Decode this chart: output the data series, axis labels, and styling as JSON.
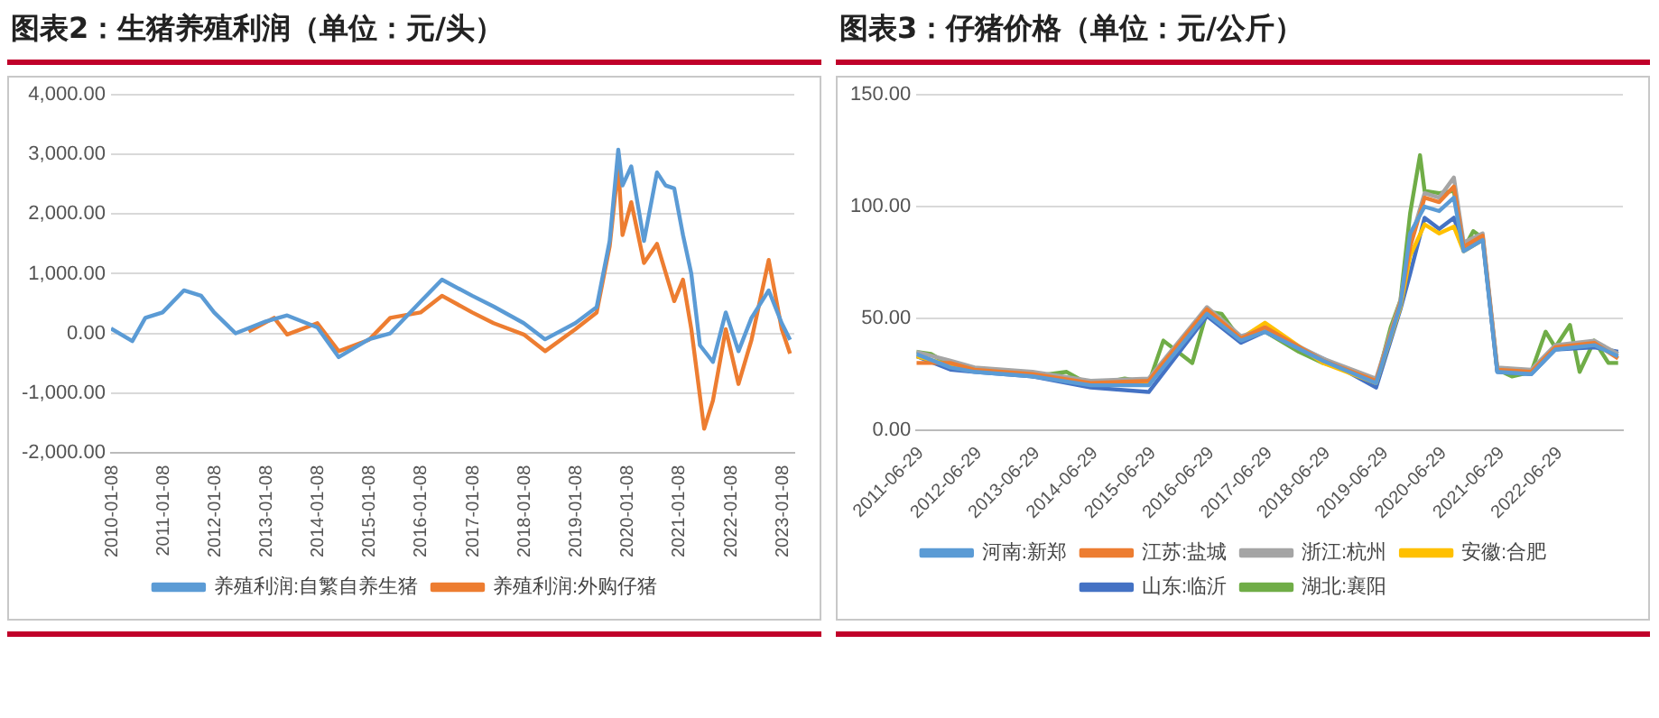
{
  "chart_data": [
    {
      "type": "line",
      "title": "图表2：生猪养殖利润（单位：元/头）",
      "ylim": [
        -2000,
        4000
      ],
      "yticks": [
        {
          "value": -2000,
          "label": "-2,000.00"
        },
        {
          "value": -1000,
          "label": "-1,000.00"
        },
        {
          "value": 0,
          "label": "0.00"
        },
        {
          "value": 1000,
          "label": "1,000.00"
        },
        {
          "value": 2000,
          "label": "2,000.00"
        },
        {
          "value": 3000,
          "label": "3,000.00"
        },
        {
          "value": 4000,
          "label": "4,000.00"
        }
      ],
      "xlim": [
        "2010-01-01",
        "2023-03-31"
      ],
      "xticks": [
        "2010-01-08",
        "2011-01-08",
        "2012-01-08",
        "2013-01-08",
        "2014-01-08",
        "2015-01-08",
        "2016-01-08",
        "2017-01-08",
        "2018-01-08",
        "2019-01-08",
        "2020-01-08",
        "2021-01-08",
        "2022-01-08",
        "2023-01-08"
      ],
      "grid": "y",
      "legend": "bottom",
      "marker": "none",
      "line_style": "solid",
      "series": [
        {
          "name": "养殖利润:自繁自养生猪",
          "color": "#5b9bd5",
          "x": [
            "2010-01",
            "2010-06",
            "2010-09",
            "2011-01",
            "2011-06",
            "2011-10",
            "2012-01",
            "2012-06",
            "2013-01",
            "2013-06",
            "2014-01",
            "2014-06",
            "2015-01",
            "2015-06",
            "2016-01",
            "2016-06",
            "2017-01",
            "2017-06",
            "2018-01",
            "2018-06",
            "2019-01",
            "2019-06",
            "2019-09",
            "2019-11",
            "2019-12",
            "2020-02",
            "2020-05",
            "2020-08",
            "2020-10",
            "2020-12",
            "2021-02",
            "2021-04",
            "2021-06",
            "2021-09",
            "2021-12",
            "2022-03",
            "2022-06",
            "2022-10",
            "2023-01",
            "2023-03"
          ],
          "values": [
            80,
            -130,
            260,
            350,
            720,
            630,
            350,
            0,
            200,
            300,
            100,
            -400,
            -100,
            0,
            530,
            900,
            630,
            450,
            170,
            -100,
            170,
            440,
            1550,
            3080,
            2480,
            2800,
            1550,
            2700,
            2480,
            2430,
            1650,
            1000,
            -200,
            -480,
            350,
            -300,
            260,
            720,
            170,
            -110
          ]
        },
        {
          "name": "养殖利润:外购仔猪",
          "color": "#ed7d31",
          "x": [
            "2012-09",
            "2013-03",
            "2013-06",
            "2014-01",
            "2014-06",
            "2015-01",
            "2015-06",
            "2016-01",
            "2016-06",
            "2017-01",
            "2017-06",
            "2018-01",
            "2018-06",
            "2019-01",
            "2019-06",
            "2019-09",
            "2019-11",
            "2019-12",
            "2020-02",
            "2020-05",
            "2020-08",
            "2020-12",
            "2021-02",
            "2021-04",
            "2021-07",
            "2021-09",
            "2021-12",
            "2022-03",
            "2022-06",
            "2022-10",
            "2023-01",
            "2023-03"
          ],
          "values": [
            30,
            260,
            -20,
            170,
            -300,
            -110,
            260,
            350,
            630,
            350,
            170,
            -20,
            -300,
            70,
            350,
            1460,
            2800,
            1650,
            2200,
            1180,
            1500,
            540,
            900,
            70,
            -1600,
            -1130,
            70,
            -850,
            -110,
            1230,
            70,
            -340
          ]
        }
      ]
    },
    {
      "type": "line",
      "title": "图表3：仔猪价格（单位：元/公斤）",
      "ylim": [
        0,
        150
      ],
      "yticks": [
        {
          "value": 0,
          "label": "0.00"
        },
        {
          "value": 50,
          "label": "50.00"
        },
        {
          "value": 100,
          "label": "100.00"
        },
        {
          "value": 150,
          "label": "150.00"
        }
      ],
      "xlim": [
        "2011-06-01",
        "2023-07-31"
      ],
      "xticks": [
        "2011-06-29",
        "2012-06-29",
        "2013-06-29",
        "2014-06-29",
        "2015-06-29",
        "2016-06-29",
        "2017-06-29",
        "2018-06-29",
        "2019-06-29",
        "2020-06-29",
        "2021-06-29",
        "2022-06-29"
      ],
      "grid": "y",
      "legend": "bottom",
      "marker": "none",
      "line_style": "solid",
      "series": [
        {
          "name": "河南:新郑",
          "color": "#5b9bd5",
          "x": [
            "2011-06",
            "2012-01",
            "2012-06",
            "2013-06",
            "2014-06",
            "2015-06",
            "2016-06",
            "2017-01",
            "2017-06",
            "2018-06",
            "2019-05",
            "2019-10",
            "2019-12",
            "2020-03",
            "2020-06",
            "2020-09",
            "2020-11",
            "2021-03",
            "2021-06",
            "2022-01",
            "2022-06",
            "2023-02",
            "2023-07"
          ],
          "values": [
            34,
            28,
            26,
            24,
            20,
            20,
            52,
            40,
            44,
            31,
            21,
            56,
            88,
            100,
            98,
            104,
            80,
            85,
            26,
            25,
            36,
            38,
            33
          ]
        },
        {
          "name": "江苏:盐城",
          "color": "#ed7d31",
          "x": [
            "2011-06",
            "2012-01",
            "2012-06",
            "2013-06",
            "2014-06",
            "2015-06",
            "2016-06",
            "2017-01",
            "2017-06",
            "2018-06",
            "2019-05",
            "2019-10",
            "2019-12",
            "2020-03",
            "2020-06",
            "2020-09",
            "2020-11",
            "2021-03",
            "2021-06",
            "2022-01",
            "2022-06",
            "2023-02",
            "2023-07"
          ],
          "values": [
            30,
            30,
            27,
            25,
            21,
            22,
            54,
            41,
            46,
            31,
            22,
            57,
            82,
            104,
            102,
            109,
            82,
            87,
            27,
            26,
            37,
            39,
            32
          ]
        },
        {
          "name": "浙江:杭州",
          "color": "#a5a5a5",
          "x": [
            "2011-06",
            "2012-01",
            "2012-06",
            "2013-06",
            "2014-06",
            "2015-06",
            "2016-06",
            "2017-01",
            "2017-06",
            "2018-06",
            "2019-05",
            "2019-10",
            "2019-12",
            "2020-03",
            "2020-06",
            "2020-09",
            "2020-11",
            "2021-03",
            "2021-06",
            "2022-01",
            "2022-06",
            "2023-02",
            "2023-07"
          ],
          "values": [
            35,
            31,
            28,
            26,
            22,
            23,
            55,
            42,
            45,
            32,
            23,
            58,
            84,
            106,
            104,
            113,
            84,
            88,
            28,
            27,
            38,
            40,
            34
          ]
        },
        {
          "name": "安徽:合肥",
          "color": "#ffc000",
          "x": [
            "2011-06",
            "2012-01",
            "2012-06",
            "2013-06",
            "2014-06",
            "2015-06",
            "2016-06",
            "2017-01",
            "2017-06",
            "2018-06",
            "2019-05",
            "2019-10",
            "2019-12",
            "2020-03",
            "2020-06",
            "2020-09",
            "2020-11",
            "2021-03"
          ],
          "values": [
            33,
            29,
            27,
            25,
            21,
            21,
            53,
            41,
            48,
            30,
            21,
            55,
            78,
            92,
            88,
            91,
            80,
            85
          ]
        },
        {
          "name": "山东:临沂",
          "color": "#4472c4",
          "x": [
            "2011-06",
            "2012-01",
            "2012-06",
            "2013-06",
            "2014-06",
            "2015-06",
            "2016-06",
            "2017-01",
            "2017-06",
            "2018-06",
            "2019-05",
            "2019-10",
            "2019-12",
            "2020-03",
            "2020-06",
            "2020-09",
            "2020-11",
            "2021-03",
            "2021-06",
            "2022-01",
            "2022-06",
            "2023-02",
            "2023-07"
          ],
          "values": [
            33,
            27,
            26,
            24,
            19,
            17,
            51,
            39,
            44,
            32,
            19,
            54,
            70,
            95,
            90,
            95,
            82,
            86,
            26,
            25,
            36,
            37,
            35
          ]
        },
        {
          "name": "湖北:襄阳",
          "color": "#70ad47",
          "x": [
            "2011-06",
            "2011-09",
            "2012-01",
            "2012-06",
            "2013-01",
            "2013-06",
            "2014-01",
            "2014-06",
            "2015-01",
            "2015-06",
            "2015-09",
            "2016-03",
            "2016-06",
            "2016-09",
            "2017-01",
            "2017-06",
            "2018-01",
            "2018-06",
            "2019-01",
            "2019-05",
            "2019-08",
            "2019-10",
            "2019-12",
            "2020-02",
            "2020-03",
            "2020-06",
            "2020-09",
            "2020-11",
            "2021-01",
            "2021-03",
            "2021-06",
            "2021-09",
            "2022-01",
            "2022-04",
            "2022-06",
            "2022-09",
            "2022-11",
            "2023-02",
            "2023-05",
            "2023-07"
          ],
          "values": [
            35,
            34,
            29,
            27,
            26,
            24,
            26,
            20,
            23,
            21,
            40,
            30,
            53,
            52,
            40,
            44,
            35,
            30,
            26,
            21,
            46,
            58,
            97,
            123,
            107,
            106,
            107,
            81,
            89,
            86,
            27,
            24,
            26,
            44,
            37,
            47,
            26,
            40,
            30,
            30
          ]
        }
      ]
    }
  ]
}
